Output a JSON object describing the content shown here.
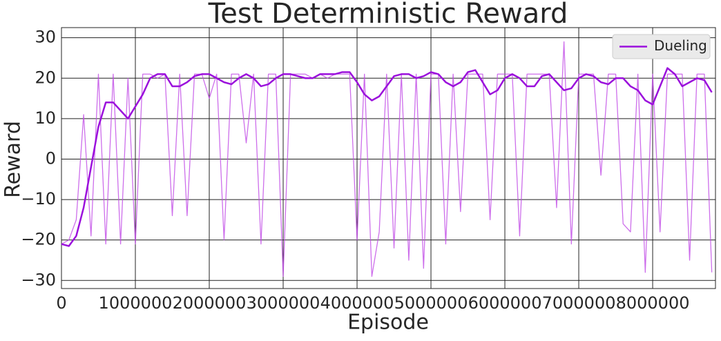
{
  "chart_data": {
    "type": "line",
    "title": "Test Deterministic Reward",
    "xlabel": "Episode",
    "ylabel": "Reward",
    "x": [
      0,
      100000,
      200000,
      300000,
      400000,
      500000,
      600000,
      700000,
      800000,
      900000,
      1000000,
      1100000,
      1200000,
      1300000,
      1400000,
      1500000,
      1600000,
      1700000,
      1800000,
      1900000,
      2000000,
      2100000,
      2200000,
      2300000,
      2400000,
      2500000,
      2600000,
      2700000,
      2800000,
      2900000,
      3000000,
      3100000,
      3200000,
      3300000,
      3400000,
      3500000,
      3600000,
      3700000,
      3800000,
      3900000,
      4000000,
      4100000,
      4200000,
      4300000,
      4400000,
      4500000,
      4600000,
      4700000,
      4800000,
      4900000,
      5000000,
      5100000,
      5200000,
      5300000,
      5400000,
      5500000,
      5600000,
      5700000,
      5800000,
      5900000,
      6000000,
      6100000,
      6200000,
      6300000,
      6400000,
      6500000,
      6600000,
      6700000,
      6800000,
      6900000,
      7000000,
      7100000,
      7200000,
      7300000,
      7400000,
      7500000,
      7600000,
      7700000,
      7800000,
      7900000,
      8000000,
      8100000,
      8200000,
      8300000,
      8400000,
      8500000,
      8600000,
      8700000,
      8800000
    ],
    "series": [
      {
        "color": "#c04ae6",
        "values": [
          -21,
          -20,
          -15,
          11,
          -19,
          21,
          -21,
          21,
          -21,
          20,
          -21,
          21,
          21,
          20,
          21,
          -14,
          21,
          -14,
          21,
          21,
          15,
          21,
          -20,
          21,
          21,
          4,
          21,
          -21,
          21,
          21,
          -29,
          21,
          21,
          21,
          20,
          21,
          20,
          21,
          21,
          21,
          -20,
          21,
          -29,
          -18,
          21,
          -22,
          21,
          -25,
          21,
          -27,
          21,
          21,
          -21,
          21,
          -13,
          21,
          21,
          21,
          -15,
          21,
          21,
          21,
          -19,
          21,
          21,
          21,
          21,
          -12,
          29,
          -21,
          21,
          21,
          21,
          -4,
          21,
          21,
          -16,
          -18,
          21,
          -28,
          21,
          -18,
          21,
          21,
          21,
          -25,
          21,
          21,
          -28
        ]
      },
      {
        "name": "Dueling",
        "color": "#9b0fdc",
        "values": [
          -21,
          -21.5,
          -19,
          -12,
          -2,
          8,
          14,
          14,
          12,
          10,
          13,
          16,
          20,
          21,
          21,
          18,
          18,
          19,
          20.5,
          21,
          21,
          20,
          19,
          18.5,
          20,
          21,
          20,
          18,
          18.5,
          20,
          21,
          21,
          20.5,
          20,
          20,
          21,
          21,
          21,
          21.5,
          21.5,
          19,
          16,
          14.5,
          15.5,
          18,
          20.5,
          21,
          21,
          20,
          20.5,
          21.5,
          21,
          19,
          18,
          19,
          21.5,
          22,
          19,
          16,
          17,
          20,
          21,
          20,
          18,
          18,
          20.5,
          21,
          19,
          17,
          17.5,
          20,
          21,
          20.5,
          19,
          18.5,
          20,
          20,
          18,
          17,
          14.5,
          13.5,
          18,
          22.5,
          21,
          18,
          19,
          20,
          19.5,
          16.5
        ]
      }
    ],
    "xlim": [
      0,
      8850000
    ],
    "ylim": [
      -32,
      32.5
    ],
    "xticks": [
      0,
      1000000,
      2000000,
      3000000,
      4000000,
      5000000,
      6000000,
      7000000,
      8000000
    ],
    "yticks": [
      {
        "value": -30,
        "label": "−30"
      },
      {
        "value": -20,
        "label": "−20"
      },
      {
        "value": -10,
        "label": "−10"
      },
      0,
      10,
      20,
      30
    ],
    "grid": true,
    "legend": "upper right"
  }
}
